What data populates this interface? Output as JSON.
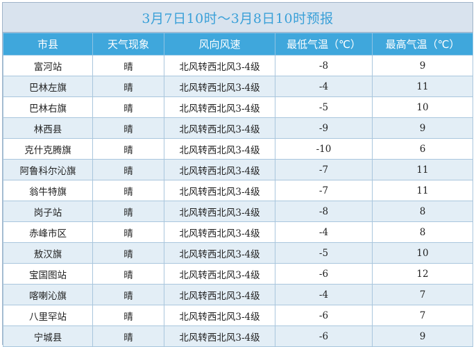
{
  "title": "3月7日10时～3月8日10时预报",
  "columns": [
    "市县",
    "天气现象",
    "风向风速",
    "最低气温（℃）",
    "最高气温（℃）"
  ],
  "rows": [
    {
      "station": "富河站",
      "weather": "晴",
      "wind": "北风转西北风3-4级",
      "low": "-8",
      "high": "9"
    },
    {
      "station": "巴林左旗",
      "weather": "晴",
      "wind": "北风转西北风3-4级",
      "low": "-4",
      "high": "11"
    },
    {
      "station": "巴林右旗",
      "weather": "晴",
      "wind": "北风转西北风3-4级",
      "low": "-5",
      "high": "10"
    },
    {
      "station": "林西县",
      "weather": "晴",
      "wind": "北风转西北风3-4级",
      "low": "-9",
      "high": "9"
    },
    {
      "station": "克什克腾旗",
      "weather": "晴",
      "wind": "北风转西北风3-4级",
      "low": "-10",
      "high": "6"
    },
    {
      "station": "阿鲁科尔沁旗",
      "weather": "晴",
      "wind": "北风转西北风3-4级",
      "low": "-7",
      "high": "11"
    },
    {
      "station": "翁牛特旗",
      "weather": "晴",
      "wind": "北风转西北风3-4级",
      "low": "-7",
      "high": "11"
    },
    {
      "station": "岗子站",
      "weather": "晴",
      "wind": "北风转西北风3-4级",
      "low": "-8",
      "high": "8"
    },
    {
      "station": "赤峰市区",
      "weather": "晴",
      "wind": "北风转西北风3-4级",
      "low": "-4",
      "high": "8"
    },
    {
      "station": "敖汉旗",
      "weather": "晴",
      "wind": "北风转西北风3-4级",
      "low": "-5",
      "high": "10"
    },
    {
      "station": "宝国图站",
      "weather": "晴",
      "wind": "北风转西北风3-4级",
      "low": "-6",
      "high": "12"
    },
    {
      "station": "喀喇沁旗",
      "weather": "晴",
      "wind": "北风转西北风3-4级",
      "low": "-4",
      "high": "7"
    },
    {
      "station": "八里罕站",
      "weather": "晴",
      "wind": "北风转西北风3-4级",
      "low": "-6",
      "high": "7"
    },
    {
      "station": "宁城县",
      "weather": "晴",
      "wind": "北风转西北风3-4级",
      "low": "-6",
      "high": "9"
    }
  ],
  "colors": {
    "header_bg": "#3fa7dc",
    "title_text": "#3aa0d8",
    "title_bg": "#d9e3ee",
    "row_alt_bg": "#e3eef6"
  }
}
